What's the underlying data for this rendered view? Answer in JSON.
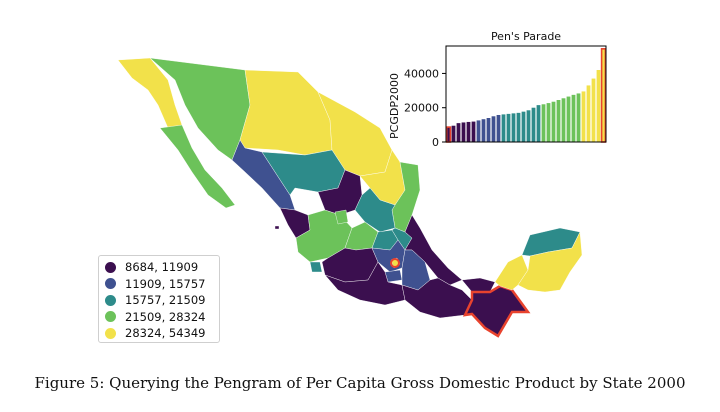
{
  "figure": {
    "caption": "Figure 5: Querying the Pengram of Per Capita Gross Domestic Product by State 2000"
  },
  "colors": {
    "class_1": "#3b0f4f",
    "class_2": "#3f5190",
    "class_3": "#2d8b8a",
    "class_4": "#6cc25a",
    "class_5": "#f2e14a",
    "highlight": "#e8432e",
    "selected_bar": "#e06c1a",
    "axes": "#000000"
  },
  "legend": {
    "items": [
      {
        "label": "8684, 11909",
        "color": "#3b0f4f"
      },
      {
        "label": "11909, 15757",
        "color": "#3f5190"
      },
      {
        "label": "15757, 21509",
        "color": "#2d8b8a"
      },
      {
        "label": "21509, 28324",
        "color": "#6cc25a"
      },
      {
        "label": "28324, 54349",
        "color": "#f2e14a"
      }
    ]
  },
  "chart_data": {
    "type": "bar",
    "title": "Pen's Parade",
    "xlabel": "",
    "ylabel": "PCGDP2000",
    "ylim": [
      0,
      56000
    ],
    "yticks": [
      0,
      20000,
      40000
    ],
    "values": [
      8684,
      9500,
      11000,
      11400,
      11700,
      11909,
      12600,
      13300,
      14000,
      15000,
      15757,
      16100,
      16400,
      16700,
      17000,
      17700,
      18500,
      20000,
      21509,
      22000,
      22700,
      23500,
      24500,
      25500,
      26500,
      27500,
      28324,
      29500,
      33000,
      37000,
      42000,
      54349
    ],
    "highlighted_indices": [
      0,
      31
    ]
  }
}
